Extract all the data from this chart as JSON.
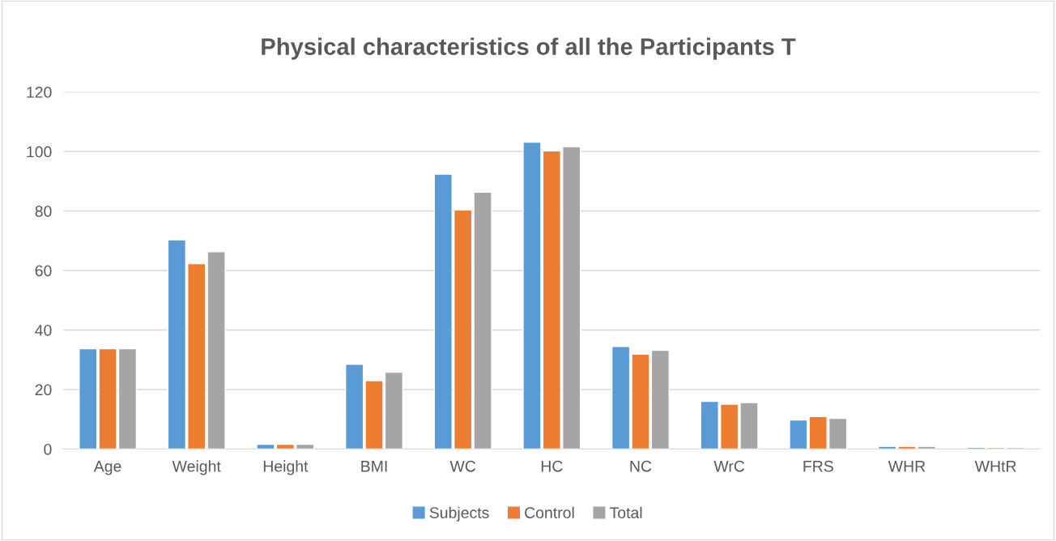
{
  "chart_data": {
    "type": "bar",
    "title": "Physical characteristics of all the Participants T",
    "categories": [
      "Age",
      "Weight",
      "Height",
      "BMI",
      "WC",
      "HC",
      "NC",
      "WrC",
      "FRS",
      "WHR",
      "WHtR"
    ],
    "series": [
      {
        "name": "Subjects",
        "color": "#5b9bd5",
        "values": [
          33.7,
          70.3,
          1.6,
          28.5,
          92.4,
          103.1,
          34.5,
          16.0,
          9.8,
          0.9,
          0.6
        ]
      },
      {
        "name": "Control",
        "color": "#ed7d31",
        "values": [
          33.7,
          62.3,
          1.6,
          23.0,
          80.3,
          100.2,
          31.9,
          15.1,
          10.9,
          0.9,
          0.5
        ]
      },
      {
        "name": "Total",
        "color": "#a5a5a5",
        "values": [
          33.7,
          66.3,
          1.6,
          25.8,
          86.3,
          101.6,
          33.2,
          15.6,
          10.3,
          0.9,
          0.5
        ]
      }
    ],
    "ylim": [
      0,
      120
    ],
    "yticks": [
      0,
      20,
      40,
      60,
      80,
      100,
      120
    ],
    "grid": "y",
    "legend": "bottom"
  }
}
